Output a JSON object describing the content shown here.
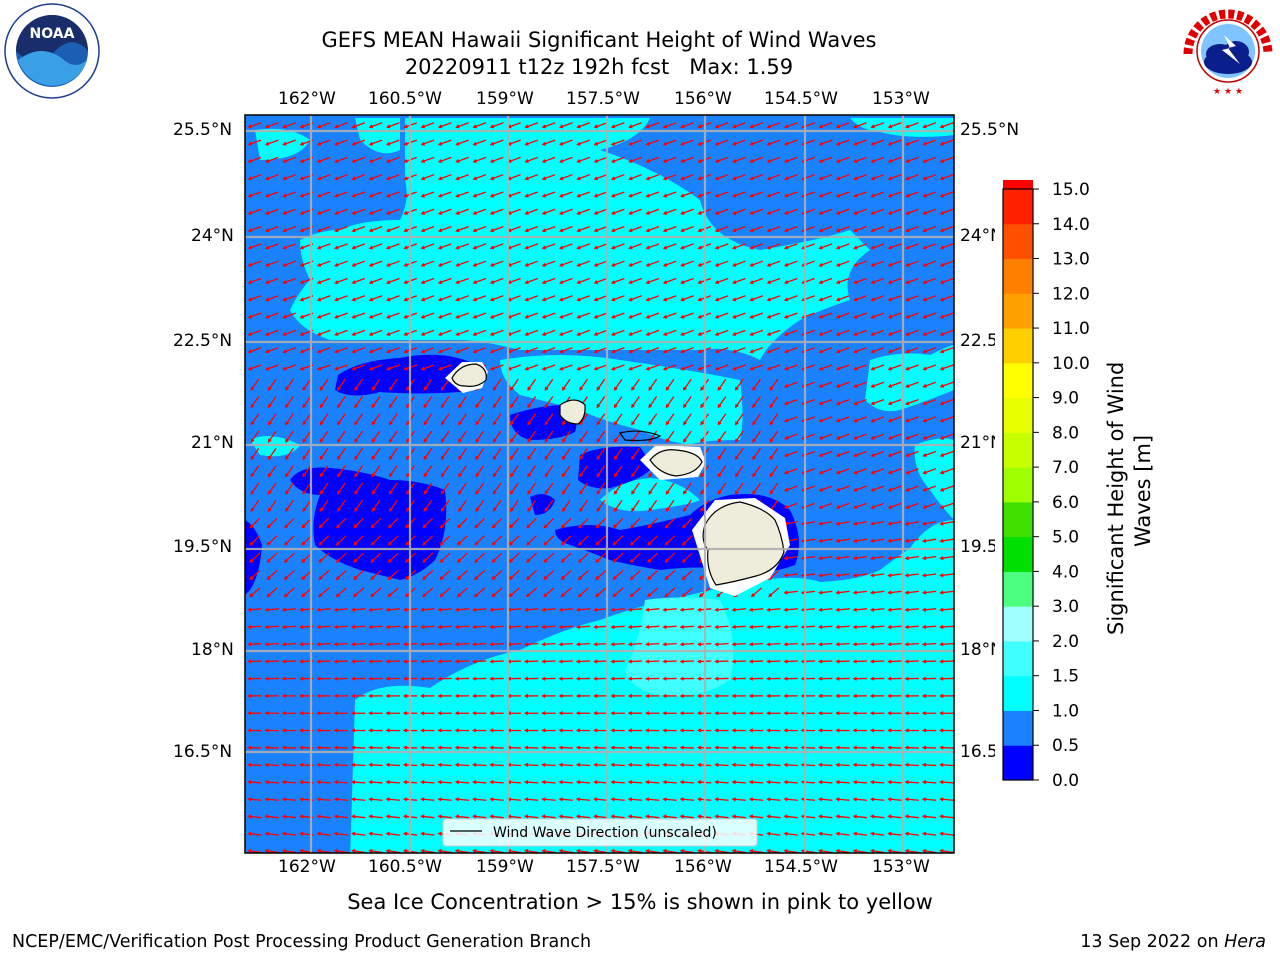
{
  "header": {
    "title_line1": "GEFS MEAN Hawaii Significant Height of Wind Waves",
    "title_line2": "20220911 t12z 192h fcst   Max: 1.59"
  },
  "logos": {
    "left": {
      "text": "NOAA",
      "ring_text": "NATIONAL OCEANIC AND ATMOSPHERIC ADMINISTRATION · U.S. DEPARTMENT OF COMMERCE"
    },
    "right": {
      "ring_text": "NATIONAL WEATHER SERVICE"
    }
  },
  "map": {
    "lon_labels": [
      "162°W",
      "160.5°W",
      "159°W",
      "157.5°W",
      "156°W",
      "154.5°W",
      "153°W"
    ],
    "lat_labels": [
      "25.5°N",
      "24°N",
      "22.5°N",
      "21°N",
      "19.5°N",
      "18°N",
      "16.5°N"
    ],
    "legend_label": "Wind Wave Direction (unscaled)",
    "arrow_color": "#ff0000",
    "coast_color": "#000000",
    "land_color": "#eeecda"
  },
  "colorbar": {
    "label": "Significant Height of Wind Waves [m]",
    "ticks": [
      "0.0",
      "0.5",
      "1.0",
      "1.5",
      "2.0",
      "3.0",
      "4.0",
      "5.0",
      "6.0",
      "7.0",
      "8.0",
      "9.0",
      "10.0",
      "11.0",
      "12.0",
      "13.0",
      "14.0",
      "15.0"
    ],
    "colors": [
      "#0000ff",
      "#1a82ff",
      "#00ffff",
      "#40ffff",
      "#a0ffff",
      "#4dff80",
      "#00e000",
      "#40e000",
      "#a0ff00",
      "#c8ff00",
      "#e8ff00",
      "#ffff00",
      "#ffd000",
      "#ffa000",
      "#ff8000",
      "#ff5000",
      "#ff2000",
      "#ff0000"
    ]
  },
  "footer": {
    "sea_ice_note": "Sea Ice Concentration > 15% is shown in pink to yellow",
    "branch": "NCEP/EMC/Verification Post Processing Product Generation Branch",
    "date": "13 Sep 2022 on",
    "machine": "Hera"
  }
}
